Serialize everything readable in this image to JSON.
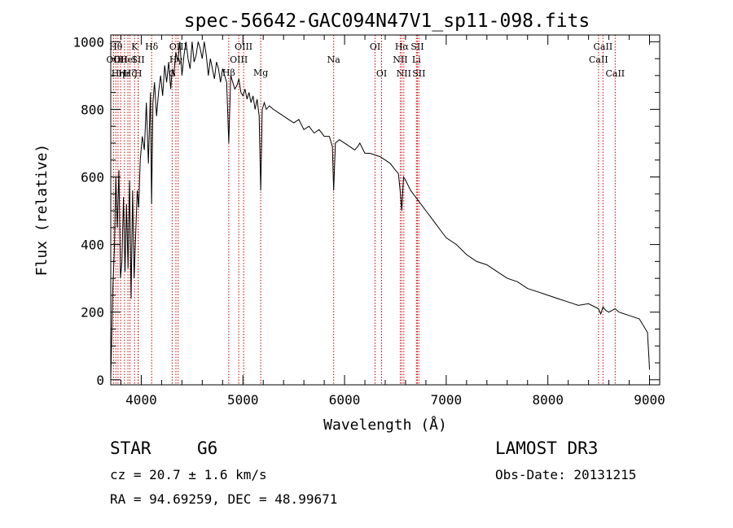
{
  "chart_data": {
    "type": "line",
    "title": "spec-56642-GAC094N47V1_sp11-098.fits",
    "xlabel": "Wavelength (Å)",
    "ylabel": "Flux (relative)",
    "xlim": [
      3700,
      9100
    ],
    "ylim": [
      -15,
      1020
    ],
    "xticks": [
      4000,
      5000,
      6000,
      7000,
      8000,
      9000
    ],
    "yticks": [
      0,
      200,
      400,
      600,
      800,
      1000
    ],
    "line_color": "#000000",
    "marker_color": "#cc0000",
    "series": [
      {
        "name": "flux",
        "x": [
          3700,
          3720,
          3735,
          3750,
          3765,
          3780,
          3795,
          3810,
          3825,
          3840,
          3855,
          3870,
          3885,
          3900,
          3915,
          3930,
          3945,
          3960,
          3975,
          3990,
          4010,
          4030,
          4050,
          4070,
          4090,
          4101,
          4115,
          4130,
          4150,
          4170,
          4190,
          4210,
          4230,
          4250,
          4270,
          4290,
          4305,
          4320,
          4340,
          4360,
          4380,
          4400,
          4420,
          4440,
          4460,
          4480,
          4500,
          4520,
          4540,
          4560,
          4580,
          4600,
          4620,
          4640,
          4660,
          4680,
          4700,
          4720,
          4740,
          4760,
          4780,
          4800,
          4820,
          4840,
          4861,
          4880,
          4900,
          4920,
          4940,
          4960,
          4980,
          5000,
          5020,
          5040,
          5060,
          5080,
          5100,
          5120,
          5140,
          5160,
          5175,
          5190,
          5210,
          5230,
          5260,
          5300,
          5350,
          5400,
          5450,
          5500,
          5550,
          5600,
          5650,
          5700,
          5750,
          5800,
          5850,
          5880,
          5893,
          5910,
          5950,
          6000,
          6050,
          6100,
          6130,
          6150,
          6200,
          6250,
          6300,
          6350,
          6400,
          6450,
          6500,
          6530,
          6550,
          6563,
          6580,
          6600,
          6650,
          6700,
          6750,
          6800,
          6850,
          6900,
          6950,
          7000,
          7100,
          7200,
          7300,
          7400,
          7500,
          7600,
          7700,
          7800,
          7900,
          8000,
          8100,
          8200,
          8300,
          8400,
          8498,
          8520,
          8542,
          8570,
          8600,
          8662,
          8700,
          8800,
          8900,
          8980,
          8995,
          9000
        ],
        "y": [
          0,
          270,
          380,
          600,
          450,
          620,
          300,
          350,
          540,
          320,
          520,
          330,
          590,
          240,
          560,
          300,
          430,
          560,
          510,
          650,
          720,
          680,
          820,
          640,
          850,
          520,
          820,
          880,
          780,
          850,
          900,
          840,
          930,
          880,
          940,
          860,
          920,
          900,
          970,
          940,
          1000,
          900,
          960,
          1000,
          950,
          920,
          1000,
          940,
          960,
          1000,
          980,
          950,
          1000,
          960,
          900,
          950,
          920,
          890,
          940,
          920,
          880,
          920,
          900,
          880,
          700,
          900,
          880,
          860,
          870,
          890,
          850,
          840,
          860,
          830,
          850,
          820,
          840,
          800,
          830,
          780,
          560,
          800,
          820,
          800,
          810,
          800,
          790,
          780,
          770,
          760,
          770,
          740,
          750,
          730,
          740,
          720,
          720,
          690,
          560,
          700,
          710,
          700,
          690,
          680,
          690,
          700,
          670,
          670,
          665,
          660,
          650,
          640,
          620,
          610,
          550,
          500,
          600,
          590,
          560,
          540,
          520,
          500,
          480,
          460,
          440,
          420,
          400,
          370,
          350,
          340,
          320,
          300,
          290,
          270,
          260,
          250,
          240,
          230,
          220,
          225,
          210,
          195,
          215,
          205,
          200,
          210,
          200,
          190,
          180,
          140,
          60,
          30
        ]
      }
    ],
    "lines": [
      {
        "x": 3727,
        "label": "OII",
        "row": 2
      },
      {
        "x": 3750,
        "label": "Hθ",
        "row": 1
      },
      {
        "x": 3771,
        "label": "Hη",
        "row": 3
      },
      {
        "x": 3797,
        "label": "OII",
        "row": 2
      },
      {
        "x": 3835,
        "label": "Hε",
        "row": 3
      },
      {
        "x": 3869,
        "label": "HeI",
        "row": 2
      },
      {
        "x": 3889,
        "label": "Hζ",
        "row": 3
      },
      {
        "x": 3934,
        "label": "K",
        "row": 1
      },
      {
        "x": 3969,
        "label": "SII",
        "row": 2
      },
      {
        "x": 3970,
        "label": "H",
        "row": 3
      },
      {
        "x": 4102,
        "label": "Hδ",
        "row": 1
      },
      {
        "x": 4304,
        "label": "G",
        "row": 3
      },
      {
        "x": 4341,
        "label": "Hγ",
        "row": 2
      },
      {
        "x": 4363,
        "label": "OIII",
        "row": 1
      },
      {
        "x": 4861,
        "label": "Hβ",
        "row": 4
      },
      {
        "x": 4959,
        "label": "OIII",
        "row": 2
      },
      {
        "x": 5007,
        "label": "OIII",
        "row": 1
      },
      {
        "x": 5175,
        "label": "Mg",
        "row": 4
      },
      {
        "x": 5893,
        "label": "Na",
        "row": 2
      },
      {
        "x": 6300,
        "label": "OI",
        "row": 1
      },
      {
        "x": 6364,
        "label": "OI",
        "row": 3
      },
      {
        "x": 6548,
        "label": "NII",
        "row": 2
      },
      {
        "x": 6563,
        "label": "Hα",
        "row": 1
      },
      {
        "x": 6583,
        "label": "NII",
        "row": 3
      },
      {
        "x": 6707,
        "label": "Li",
        "row": 2
      },
      {
        "x": 6716,
        "label": "SII",
        "row": 1
      },
      {
        "x": 6731,
        "label": "SII",
        "row": 3
      },
      {
        "x": 8498,
        "label": "CaII",
        "row": 2
      },
      {
        "x": 8542,
        "label": "CaII",
        "row": 1
      },
      {
        "x": 8662,
        "label": "CaII",
        "row": 3
      }
    ]
  },
  "info": {
    "object_class": "STAR",
    "subclass": "G6",
    "survey": "LAMOST DR3",
    "cz": "cz = 20.7 ± 1.6 km/s",
    "obs_date": "Obs-Date: 20131215",
    "coords": "RA =  94.69259, DEC =  48.99671"
  }
}
